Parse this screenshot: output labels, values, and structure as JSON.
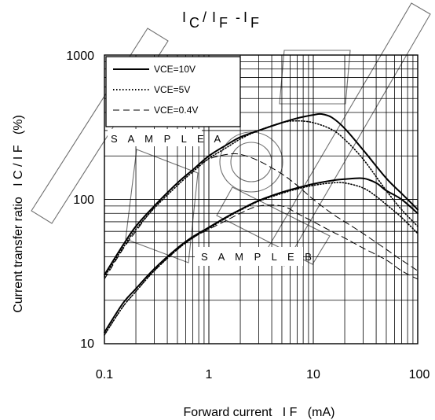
{
  "chart_data": {
    "type": "line",
    "title": "I C / I F - I F",
    "xlabel": "Forward current   I F   (mA)",
    "ylabel": "Current transfer ratio   I C / I F   (%)",
    "xscale": "log",
    "yscale": "log",
    "xlim": [
      0.1,
      100
    ],
    "ylim": [
      10,
      1000
    ],
    "grid": true,
    "legend_position": "top-left",
    "x_tick_labels": [
      "0.1",
      "1",
      "10",
      "100"
    ],
    "y_tick_labels": [
      "10",
      "100",
      "1000"
    ],
    "legend": [
      {
        "label": "VCE=10V",
        "style": "solid"
      },
      {
        "label": "VCE=5V",
        "style": "dotted"
      },
      {
        "label": "VCE=0.4V",
        "style": "dashed"
      }
    ],
    "annotations": [
      "S A M P L E   A",
      "S A M P L E   B"
    ],
    "series": [
      {
        "group": "S A M P L E   A",
        "style": "solid",
        "x": [
          0.1,
          0.15,
          0.2,
          0.3,
          0.5,
          0.7,
          1,
          1.5,
          2,
          3,
          5,
          7,
          10,
          12,
          15,
          20,
          30,
          50,
          70,
          100
        ],
        "y": [
          30,
          48,
          65,
          90,
          130,
          160,
          200,
          240,
          270,
          300,
          340,
          365,
          385,
          390,
          370,
          310,
          220,
          140,
          110,
          85
        ]
      },
      {
        "group": "S A M P L E   A",
        "style": "dotted",
        "x": [
          0.1,
          0.15,
          0.2,
          0.3,
          0.5,
          0.7,
          1,
          1.5,
          2,
          3,
          5,
          7,
          10,
          15,
          20,
          30,
          50,
          70,
          100
        ],
        "y": [
          29,
          46,
          62,
          87,
          125,
          155,
          192,
          230,
          262,
          300,
          340,
          350,
          340,
          305,
          260,
          190,
          115,
          85,
          65
        ]
      },
      {
        "group": "S A M P L E   A",
        "style": "dashed",
        "x": [
          0.1,
          0.15,
          0.2,
          0.3,
          0.5,
          0.7,
          1,
          1.5,
          2,
          3,
          5,
          7,
          10,
          15,
          20,
          30,
          50,
          70,
          100
        ],
        "y": [
          28,
          45,
          60,
          88,
          130,
          160,
          190,
          205,
          205,
          185,
          150,
          125,
          100,
          80,
          70,
          58,
          45,
          38,
          32
        ]
      },
      {
        "group": "S A M P L E   B",
        "style": "solid",
        "x": [
          0.1,
          0.15,
          0.2,
          0.3,
          0.5,
          0.7,
          1,
          1.5,
          2,
          3,
          5,
          7,
          10,
          15,
          20,
          30,
          40,
          50,
          70,
          100
        ],
        "y": [
          12,
          19,
          24,
          33,
          46,
          55,
          64,
          76,
          85,
          98,
          112,
          120,
          128,
          135,
          138,
          140,
          130,
          115,
          100,
          80
        ]
      },
      {
        "group": "S A M P L E   B",
        "style": "dotted",
        "x": [
          0.1,
          0.15,
          0.2,
          0.3,
          0.5,
          0.7,
          1,
          1.5,
          2,
          3,
          5,
          7,
          10,
          15,
          20,
          30,
          40,
          50,
          70,
          100
        ],
        "y": [
          11.5,
          18,
          23,
          32,
          45,
          54,
          63,
          75,
          84,
          97,
          110,
          118,
          125,
          130,
          130,
          120,
          105,
          92,
          75,
          58
        ]
      },
      {
        "group": "S A M P L E   B",
        "style": "dashed",
        "x": [
          0.1,
          0.15,
          0.2,
          0.3,
          0.5,
          0.7,
          1,
          1.5,
          2,
          3,
          5,
          7,
          10,
          15,
          20,
          30,
          50,
          70,
          100
        ],
        "y": [
          11.5,
          18,
          23,
          32,
          45,
          54,
          62,
          72,
          80,
          90,
          90,
          80,
          70,
          60,
          54,
          46,
          38,
          32,
          28
        ]
      }
    ]
  }
}
